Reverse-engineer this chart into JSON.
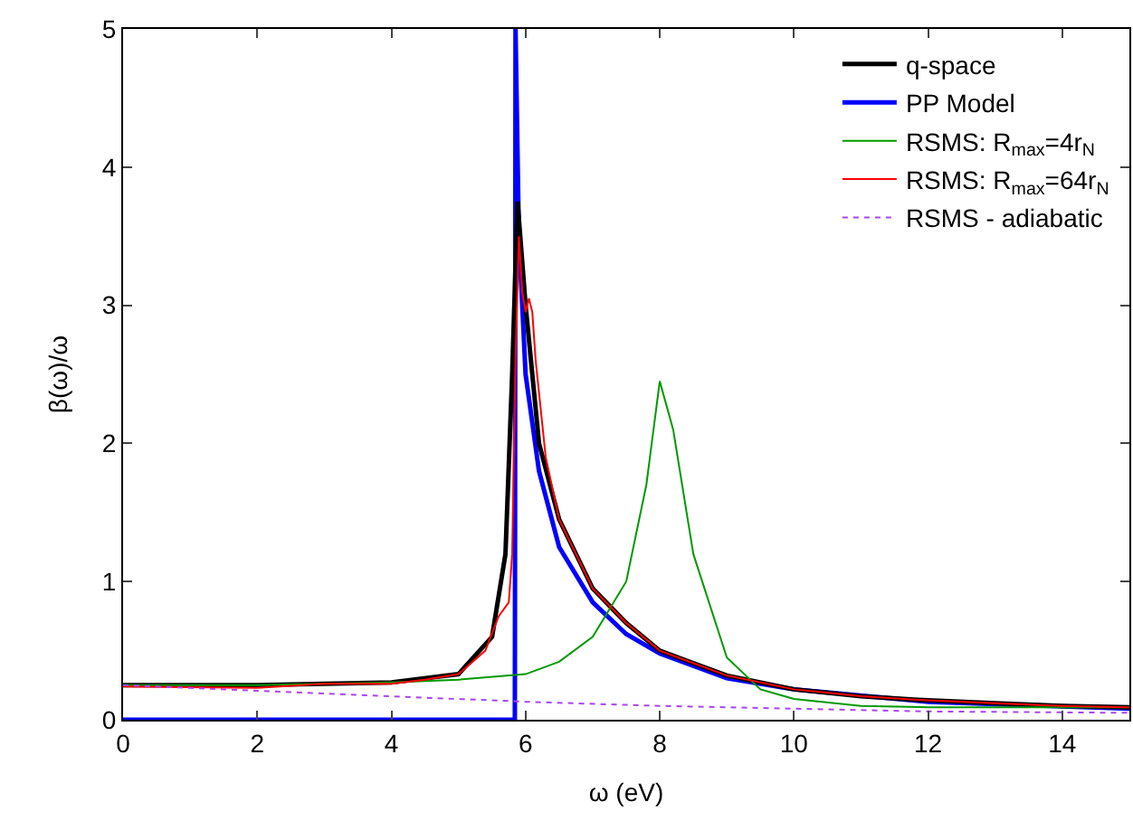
{
  "chart_data": {
    "type": "line",
    "xlabel": "ω (eV)",
    "ylabel": "β(ω)/ω",
    "xlim": [
      0,
      15
    ],
    "ylim": [
      0,
      5
    ],
    "xticks": [
      0,
      2,
      4,
      6,
      8,
      10,
      12,
      14
    ],
    "yticks": [
      0,
      1,
      2,
      3,
      4,
      5
    ],
    "legend": "top right",
    "marker": "none",
    "series": [
      {
        "name": "q-space",
        "color": "#000000",
        "x": [
          0,
          2,
          4,
          5,
          5.5,
          5.7,
          5.8,
          5.88,
          6.0,
          6.2,
          6.5,
          7,
          7.5,
          8,
          9,
          10,
          11,
          12,
          13,
          14,
          15
        ],
        "values": [
          0.25,
          0.25,
          0.27,
          0.33,
          0.6,
          1.2,
          2.5,
          3.75,
          3.0,
          2.0,
          1.45,
          0.95,
          0.7,
          0.5,
          0.32,
          0.22,
          0.17,
          0.14,
          0.12,
          0.1,
          0.09
        ]
      },
      {
        "name": "PP Model",
        "color": "#0000ff",
        "x": [
          0,
          5.84,
          5.85,
          5.9,
          6.0,
          6.2,
          6.5,
          7,
          7.5,
          8,
          9,
          10,
          12,
          15
        ],
        "values": [
          0,
          0,
          5,
          3.5,
          2.5,
          1.8,
          1.25,
          0.85,
          0.62,
          0.48,
          0.3,
          0.22,
          0.13,
          0.08
        ]
      },
      {
        "name": "RSMS: R$_{max}$=4r$_{N}$",
        "color": "#009900",
        "line_style": "solid",
        "x": [
          0,
          2,
          4,
          5,
          6,
          6.5,
          7,
          7.5,
          7.8,
          8.0,
          8.2,
          8.5,
          9,
          9.5,
          10,
          11,
          12,
          15
        ],
        "values": [
          0.25,
          0.25,
          0.27,
          0.29,
          0.33,
          0.42,
          0.6,
          1.0,
          1.7,
          2.45,
          2.1,
          1.2,
          0.45,
          0.22,
          0.15,
          0.1,
          0.09,
          0.09
        ]
      },
      {
        "name": "RSMS: R$_{max}$=64r$_{N}$",
        "color": "#ff0000",
        "line_style": "solid",
        "x": [
          0,
          2,
          3,
          4,
          4.5,
          5,
          5.4,
          5.6,
          5.75,
          5.8,
          5.85,
          5.9,
          5.95,
          6.0,
          6.05,
          6.1,
          6.15,
          6.3,
          6.5,
          7,
          7.5,
          8,
          9,
          10,
          11,
          12,
          13,
          14,
          15
        ],
        "values": [
          0.24,
          0.23,
          0.26,
          0.26,
          0.29,
          0.33,
          0.5,
          0.75,
          0.85,
          1.2,
          2.6,
          3.5,
          3.1,
          2.95,
          3.05,
          2.95,
          2.6,
          1.9,
          1.45,
          0.95,
          0.7,
          0.5,
          0.32,
          0.22,
          0.17,
          0.14,
          0.12,
          0.1,
          0.09
        ]
      },
      {
        "name": "RSMS - adiabatic",
        "color": "#aa44ee",
        "line_style": "dotted",
        "x": [
          0,
          2,
          4,
          6,
          8,
          10,
          12,
          15
        ],
        "values": [
          0.25,
          0.21,
          0.17,
          0.13,
          0.1,
          0.08,
          0.06,
          0.05
        ]
      }
    ]
  }
}
